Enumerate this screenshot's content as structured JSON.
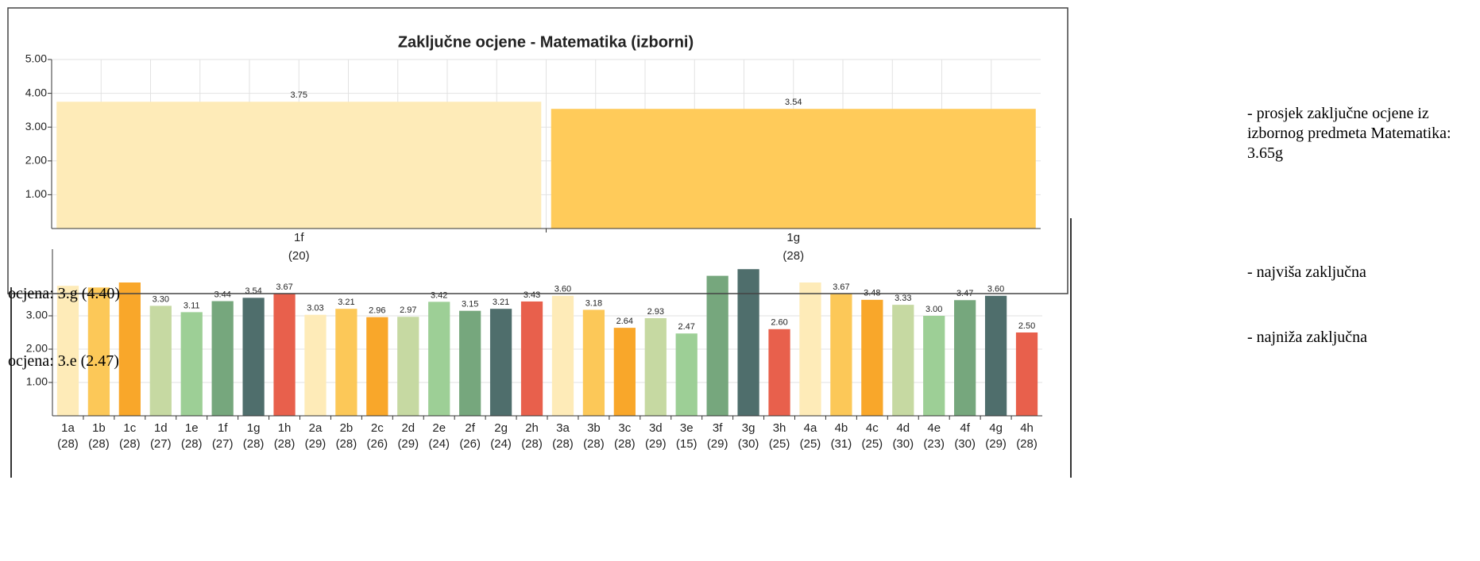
{
  "chart_data": [
    {
      "type": "bar",
      "title": "Zaključne ocjene - Matematika (izborni)",
      "categories": [
        "1f",
        "1g"
      ],
      "counts": [
        "(20)",
        "(28)"
      ],
      "values": [
        3.75,
        3.54
      ],
      "colors": [
        "#feebb8",
        "#ffcb5a"
      ],
      "ylim": [
        0,
        5
      ],
      "yticks": [
        {
          "value": 1,
          "label": "1.00"
        },
        {
          "value": 2,
          "label": "2.00"
        },
        {
          "value": 3,
          "label": "3.00"
        },
        {
          "value": 4,
          "label": "4.00"
        },
        {
          "value": 5,
          "label": "5.00"
        }
      ],
      "grid": true
    },
    {
      "type": "bar",
      "categories": [
        "1a",
        "1b",
        "1c",
        "1d",
        "1e",
        "1f",
        "1g",
        "1h",
        "2a",
        "2b",
        "2c",
        "2d",
        "2e",
        "2f",
        "2g",
        "2h",
        "3a",
        "3b",
        "3c",
        "3d",
        "3e",
        "3f",
        "3g",
        "3h",
        "4a",
        "4b",
        "4c",
        "4d",
        "4e",
        "4f",
        "4g",
        "4h"
      ],
      "counts": [
        "(28)",
        "(28)",
        "(28)",
        "(27)",
        "(28)",
        "(27)",
        "(28)",
        "(28)",
        "(29)",
        "(28)",
        "(26)",
        "(29)",
        "(24)",
        "(26)",
        "(24)",
        "(28)",
        "(28)",
        "(28)",
        "(28)",
        "(29)",
        "(15)",
        "(29)",
        "(30)",
        "(25)",
        "(25)",
        "(31)",
        "(25)",
        "(30)",
        "(23)",
        "(30)",
        "(29)",
        "(28)"
      ],
      "values": [
        3.9,
        3.85,
        4.0,
        3.3,
        3.11,
        3.44,
        3.54,
        3.67,
        3.03,
        3.21,
        2.96,
        2.97,
        3.42,
        3.15,
        3.21,
        3.43,
        3.6,
        3.18,
        2.64,
        2.93,
        2.47,
        4.2,
        4.4,
        2.6,
        4.0,
        3.67,
        3.48,
        3.33,
        3.0,
        3.47,
        3.6,
        2.5
      ],
      "value_labels": [
        null,
        null,
        null,
        "3.30",
        "3.11",
        "3.44",
        "3.54",
        "3.67",
        "3.03",
        "3.21",
        "2.96",
        "2.97",
        "3.42",
        "3.15",
        "3.21",
        "3.43",
        "3.60",
        "3.18",
        "2.64",
        "2.93",
        "2.47",
        null,
        null,
        "2.60",
        null,
        "3.67",
        "3.48",
        "3.33",
        "3.00",
        "3.47",
        "3.60",
        "2.50"
      ],
      "colors": [
        "#feebb8",
        "#fcc858",
        "#f9a72a",
        "#c6d9a2",
        "#9dcf96",
        "#76a77d",
        "#4f6e6c",
        "#e8604c",
        "#feebb8",
        "#fcc858",
        "#f9a72a",
        "#c6d9a2",
        "#9dcf96",
        "#76a77d",
        "#4f6e6c",
        "#e8604c",
        "#feebb8",
        "#fcc858",
        "#f9a72a",
        "#c6d9a2",
        "#9dcf96",
        "#76a77d",
        "#4f6e6c",
        "#e8604c",
        "#feebb8",
        "#fcc858",
        "#f9a72a",
        "#c6d9a2",
        "#9dcf96",
        "#76a77d",
        "#4f6e6c",
        "#e8604c"
      ],
      "ylim": [
        0,
        5
      ],
      "yticks": [
        {
          "value": 1,
          "label": "1.00"
        },
        {
          "value": 2,
          "label": "2.00"
        },
        {
          "value": 3,
          "label": "3.00"
        }
      ],
      "grid": true
    }
  ],
  "side_text": {
    "average": "- prosjek zaključne ocjene iz izbornog predmeta Matematika: 3.65g",
    "highest": "- najviša zaključna",
    "highest_value": "ocjena: 3.g (4.40)",
    "lowest": "- najniža zaključna",
    "lowest_value": "ocjena: 3.e (2.47)"
  }
}
